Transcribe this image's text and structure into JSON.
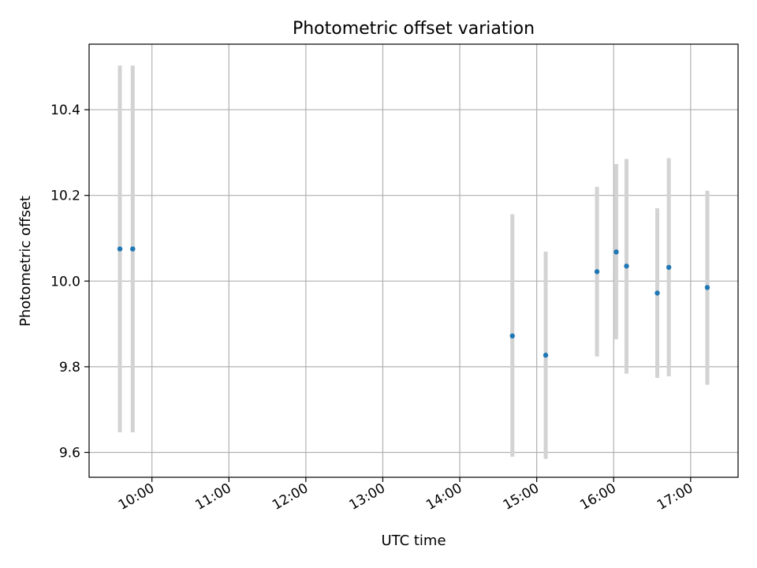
{
  "chart_data": {
    "type": "scatter",
    "title": "Photometric offset variation",
    "xlabel": "UTC time",
    "ylabel": "Photometric offset",
    "grid": true,
    "x_tick_labels": [
      "10:00",
      "11:00",
      "12:00",
      "13:00",
      "14:00",
      "15:00",
      "16:00",
      "17:00"
    ],
    "y_tick_labels": [
      "9.6",
      "9.8",
      "10.0",
      "10.2",
      "10.4"
    ],
    "y_ticks": [
      9.6,
      9.8,
      10.0,
      10.2,
      10.4
    ],
    "xlim": [
      "09:11",
      "17:37"
    ],
    "ylim": [
      9.542,
      10.553
    ],
    "marker_color": "#1f77b4",
    "errorbar_color": "#d3d3d3",
    "points": [
      {
        "time": "09:35",
        "value": 10.075,
        "low": 9.647,
        "high": 10.503
      },
      {
        "time": "09:45",
        "value": 10.075,
        "low": 9.647,
        "high": 10.503
      },
      {
        "time": "14:41",
        "value": 9.872,
        "low": 9.59,
        "high": 10.156
      },
      {
        "time": "15:07",
        "value": 9.827,
        "low": 9.585,
        "high": 10.069
      },
      {
        "time": "15:47",
        "value": 10.022,
        "low": 9.824,
        "high": 10.22
      },
      {
        "time": "16:02",
        "value": 10.068,
        "low": 9.864,
        "high": 10.273
      },
      {
        "time": "16:10",
        "value": 10.035,
        "low": 9.784,
        "high": 10.285
      },
      {
        "time": "16:34",
        "value": 9.972,
        "low": 9.774,
        "high": 10.17
      },
      {
        "time": "16:43",
        "value": 10.032,
        "low": 9.778,
        "high": 10.287
      },
      {
        "time": "17:13",
        "value": 9.985,
        "low": 9.758,
        "high": 10.211
      }
    ]
  }
}
